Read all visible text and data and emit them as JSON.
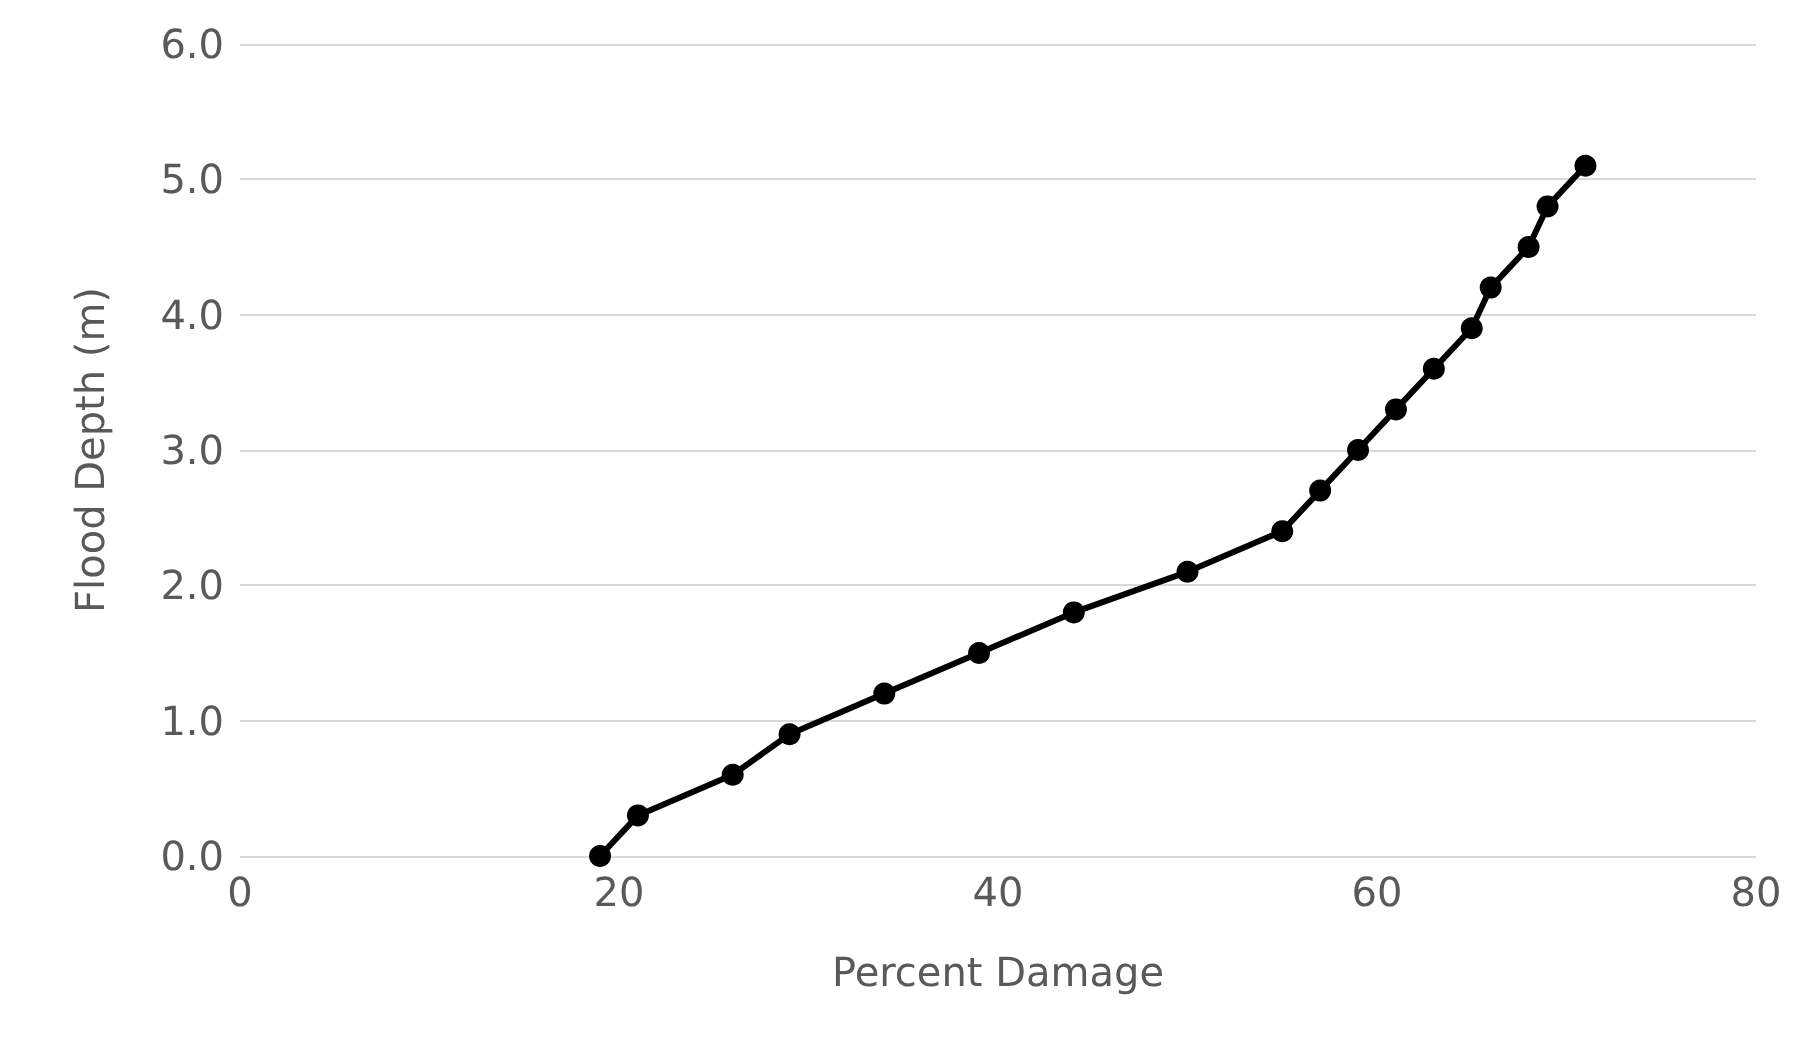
{
  "chart_data": {
    "type": "line",
    "xlabel": "Percent Damage",
    "ylabel": "Flood Depth (m)",
    "x": [
      19,
      21,
      26,
      29,
      34,
      39,
      44,
      50,
      55,
      57,
      59,
      61,
      63,
      65,
      66,
      68,
      69,
      71
    ],
    "series": [
      {
        "color": "#000000",
        "values": [
          0,
          0.3,
          0.6,
          0.9,
          1.2,
          1.5,
          1.8,
          2.1,
          2.4,
          2.7,
          3.0,
          3.3,
          3.6,
          3.9,
          4.2,
          4.5,
          4.8,
          5.1
        ]
      }
    ],
    "xlim": [
      0,
      80
    ],
    "xticks": [
      0,
      20,
      40,
      60,
      80
    ],
    "ylim": [
      0,
      6
    ],
    "yticks": [
      {
        "value": 0,
        "label": "0.0"
      },
      {
        "value": 1,
        "label": "1.0"
      },
      {
        "value": 2,
        "label": "2.0"
      },
      {
        "value": 3,
        "label": "3.0"
      },
      {
        "value": 4,
        "label": "4.0"
      },
      {
        "value": 5,
        "label": "5.0"
      },
      {
        "value": 6,
        "label": "6.0"
      }
    ],
    "grid": "y",
    "marker": "circle",
    "line_style": "solid"
  }
}
